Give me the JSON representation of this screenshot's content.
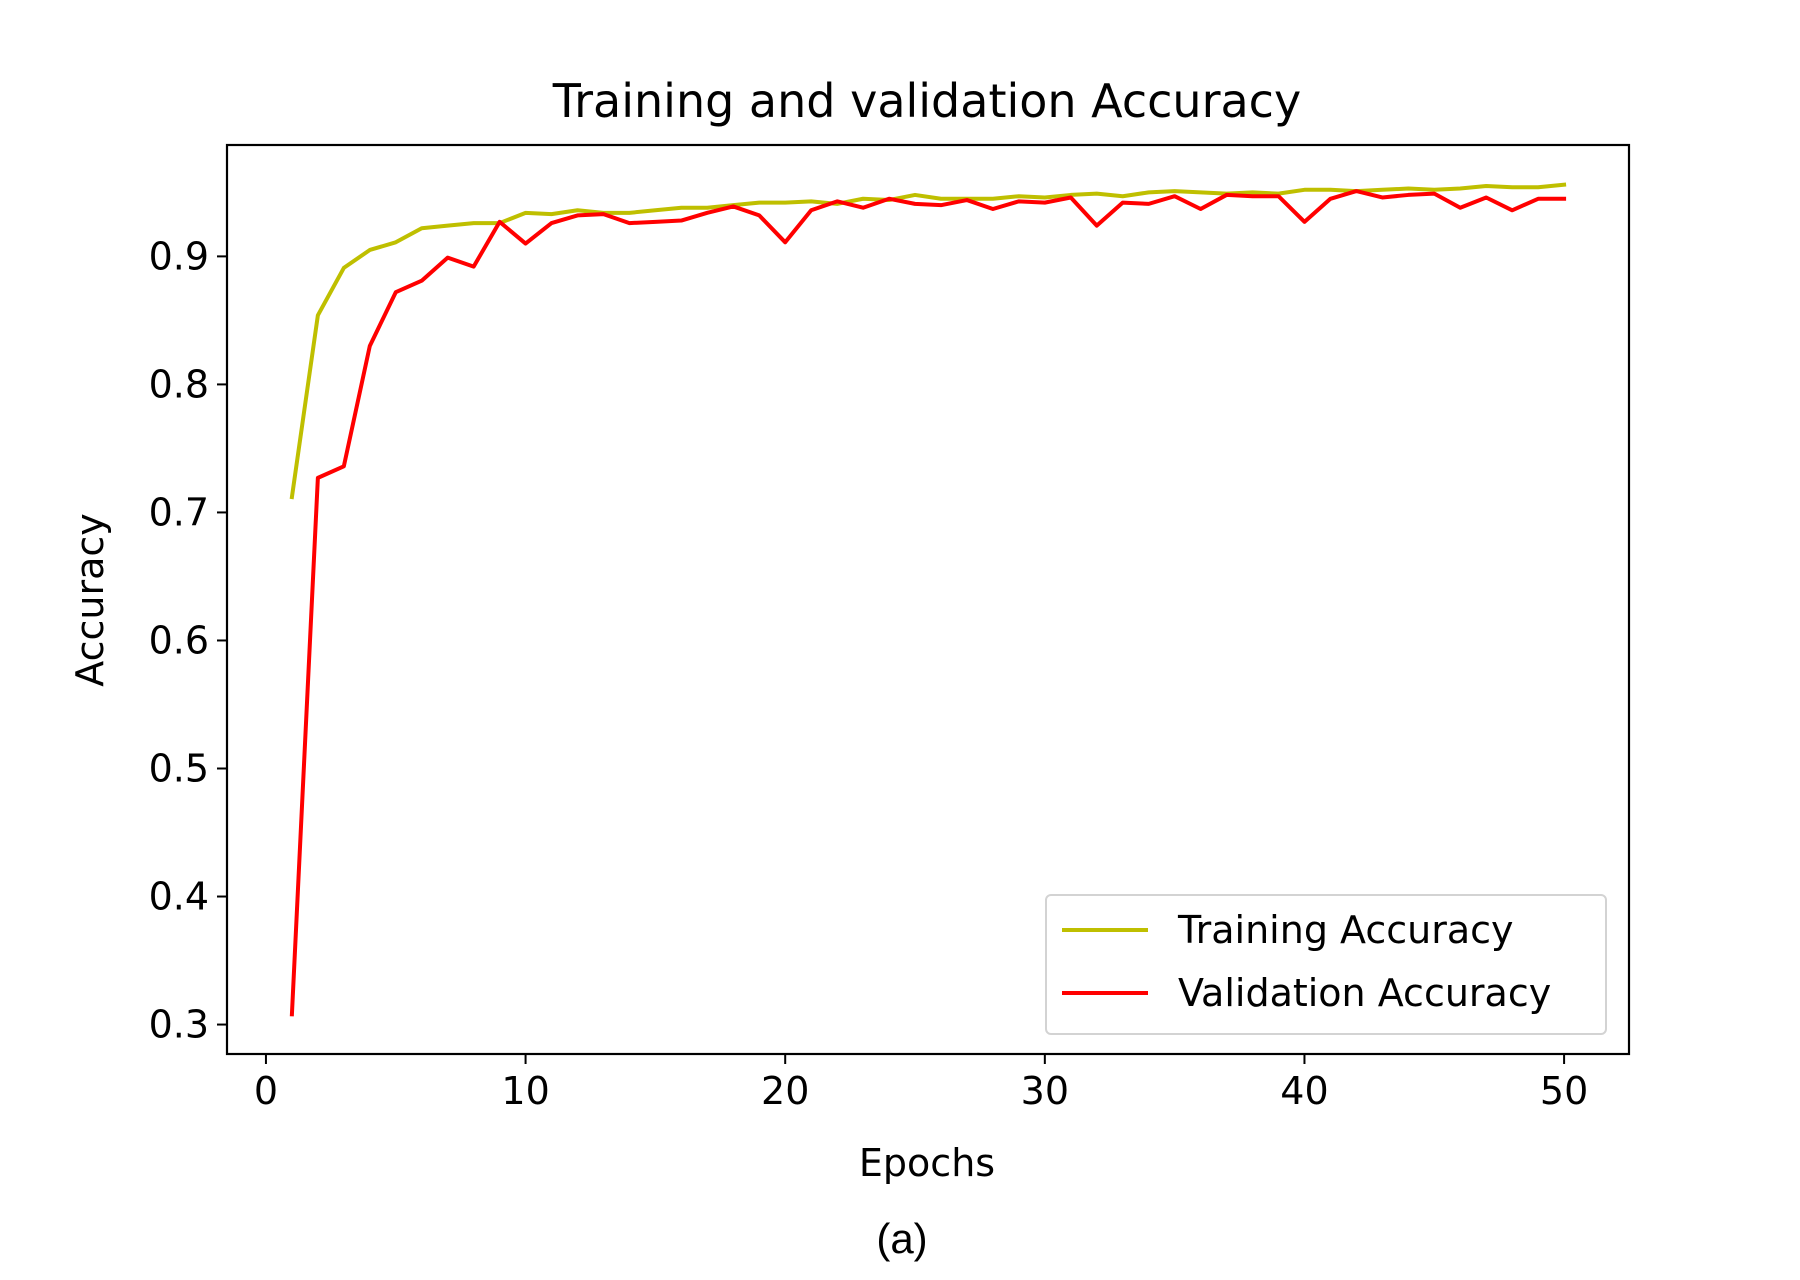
{
  "chart_data": {
    "type": "line",
    "title": "Training and validation Accuracy",
    "xlabel": "Epochs",
    "ylabel": "Accuracy",
    "xlim": [
      -1.5,
      52.5
    ],
    "ylim": [
      0.277,
      0.987
    ],
    "xticks": [
      0,
      10,
      20,
      30,
      40,
      50
    ],
    "yticks": [
      0.3,
      0.4,
      0.5,
      0.6,
      0.7,
      0.8,
      0.9
    ],
    "grid": false,
    "legend_position": "lower-right",
    "x": [
      1,
      2,
      3,
      4,
      5,
      6,
      7,
      8,
      9,
      10,
      11,
      12,
      13,
      14,
      15,
      16,
      17,
      18,
      19,
      20,
      21,
      22,
      23,
      24,
      25,
      26,
      27,
      28,
      29,
      30,
      31,
      32,
      33,
      34,
      35,
      36,
      37,
      38,
      39,
      40,
      41,
      42,
      43,
      44,
      45,
      46,
      47,
      48,
      49,
      50
    ],
    "series": [
      {
        "name": "Training Accuracy",
        "color": "#bfbf00",
        "values": [
          0.712,
          0.854,
          0.891,
          0.905,
          0.911,
          0.922,
          0.924,
          0.926,
          0.926,
          0.934,
          0.933,
          0.936,
          0.934,
          0.934,
          0.936,
          0.938,
          0.938,
          0.94,
          0.942,
          0.942,
          0.943,
          0.941,
          0.945,
          0.944,
          0.948,
          0.945,
          0.945,
          0.945,
          0.947,
          0.946,
          0.948,
          0.949,
          0.947,
          0.95,
          0.951,
          0.95,
          0.949,
          0.95,
          0.949,
          0.952,
          0.952,
          0.951,
          0.952,
          0.953,
          0.952,
          0.953,
          0.955,
          0.954,
          0.954,
          0.956
        ]
      },
      {
        "name": "Validation Accuracy",
        "color": "#ff0000",
        "values": [
          0.308,
          0.727,
          0.736,
          0.83,
          0.872,
          0.881,
          0.899,
          0.892,
          0.927,
          0.91,
          0.926,
          0.932,
          0.933,
          0.926,
          0.927,
          0.928,
          0.934,
          0.939,
          0.932,
          0.911,
          0.936,
          0.943,
          0.938,
          0.945,
          0.941,
          0.94,
          0.944,
          0.937,
          0.943,
          0.942,
          0.946,
          0.924,
          0.942,
          0.941,
          0.947,
          0.937,
          0.948,
          0.947,
          0.947,
          0.927,
          0.945,
          0.951,
          0.946,
          0.948,
          0.949,
          0.938,
          0.946,
          0.936,
          0.945,
          0.945
        ]
      }
    ]
  },
  "caption": "(a)"
}
